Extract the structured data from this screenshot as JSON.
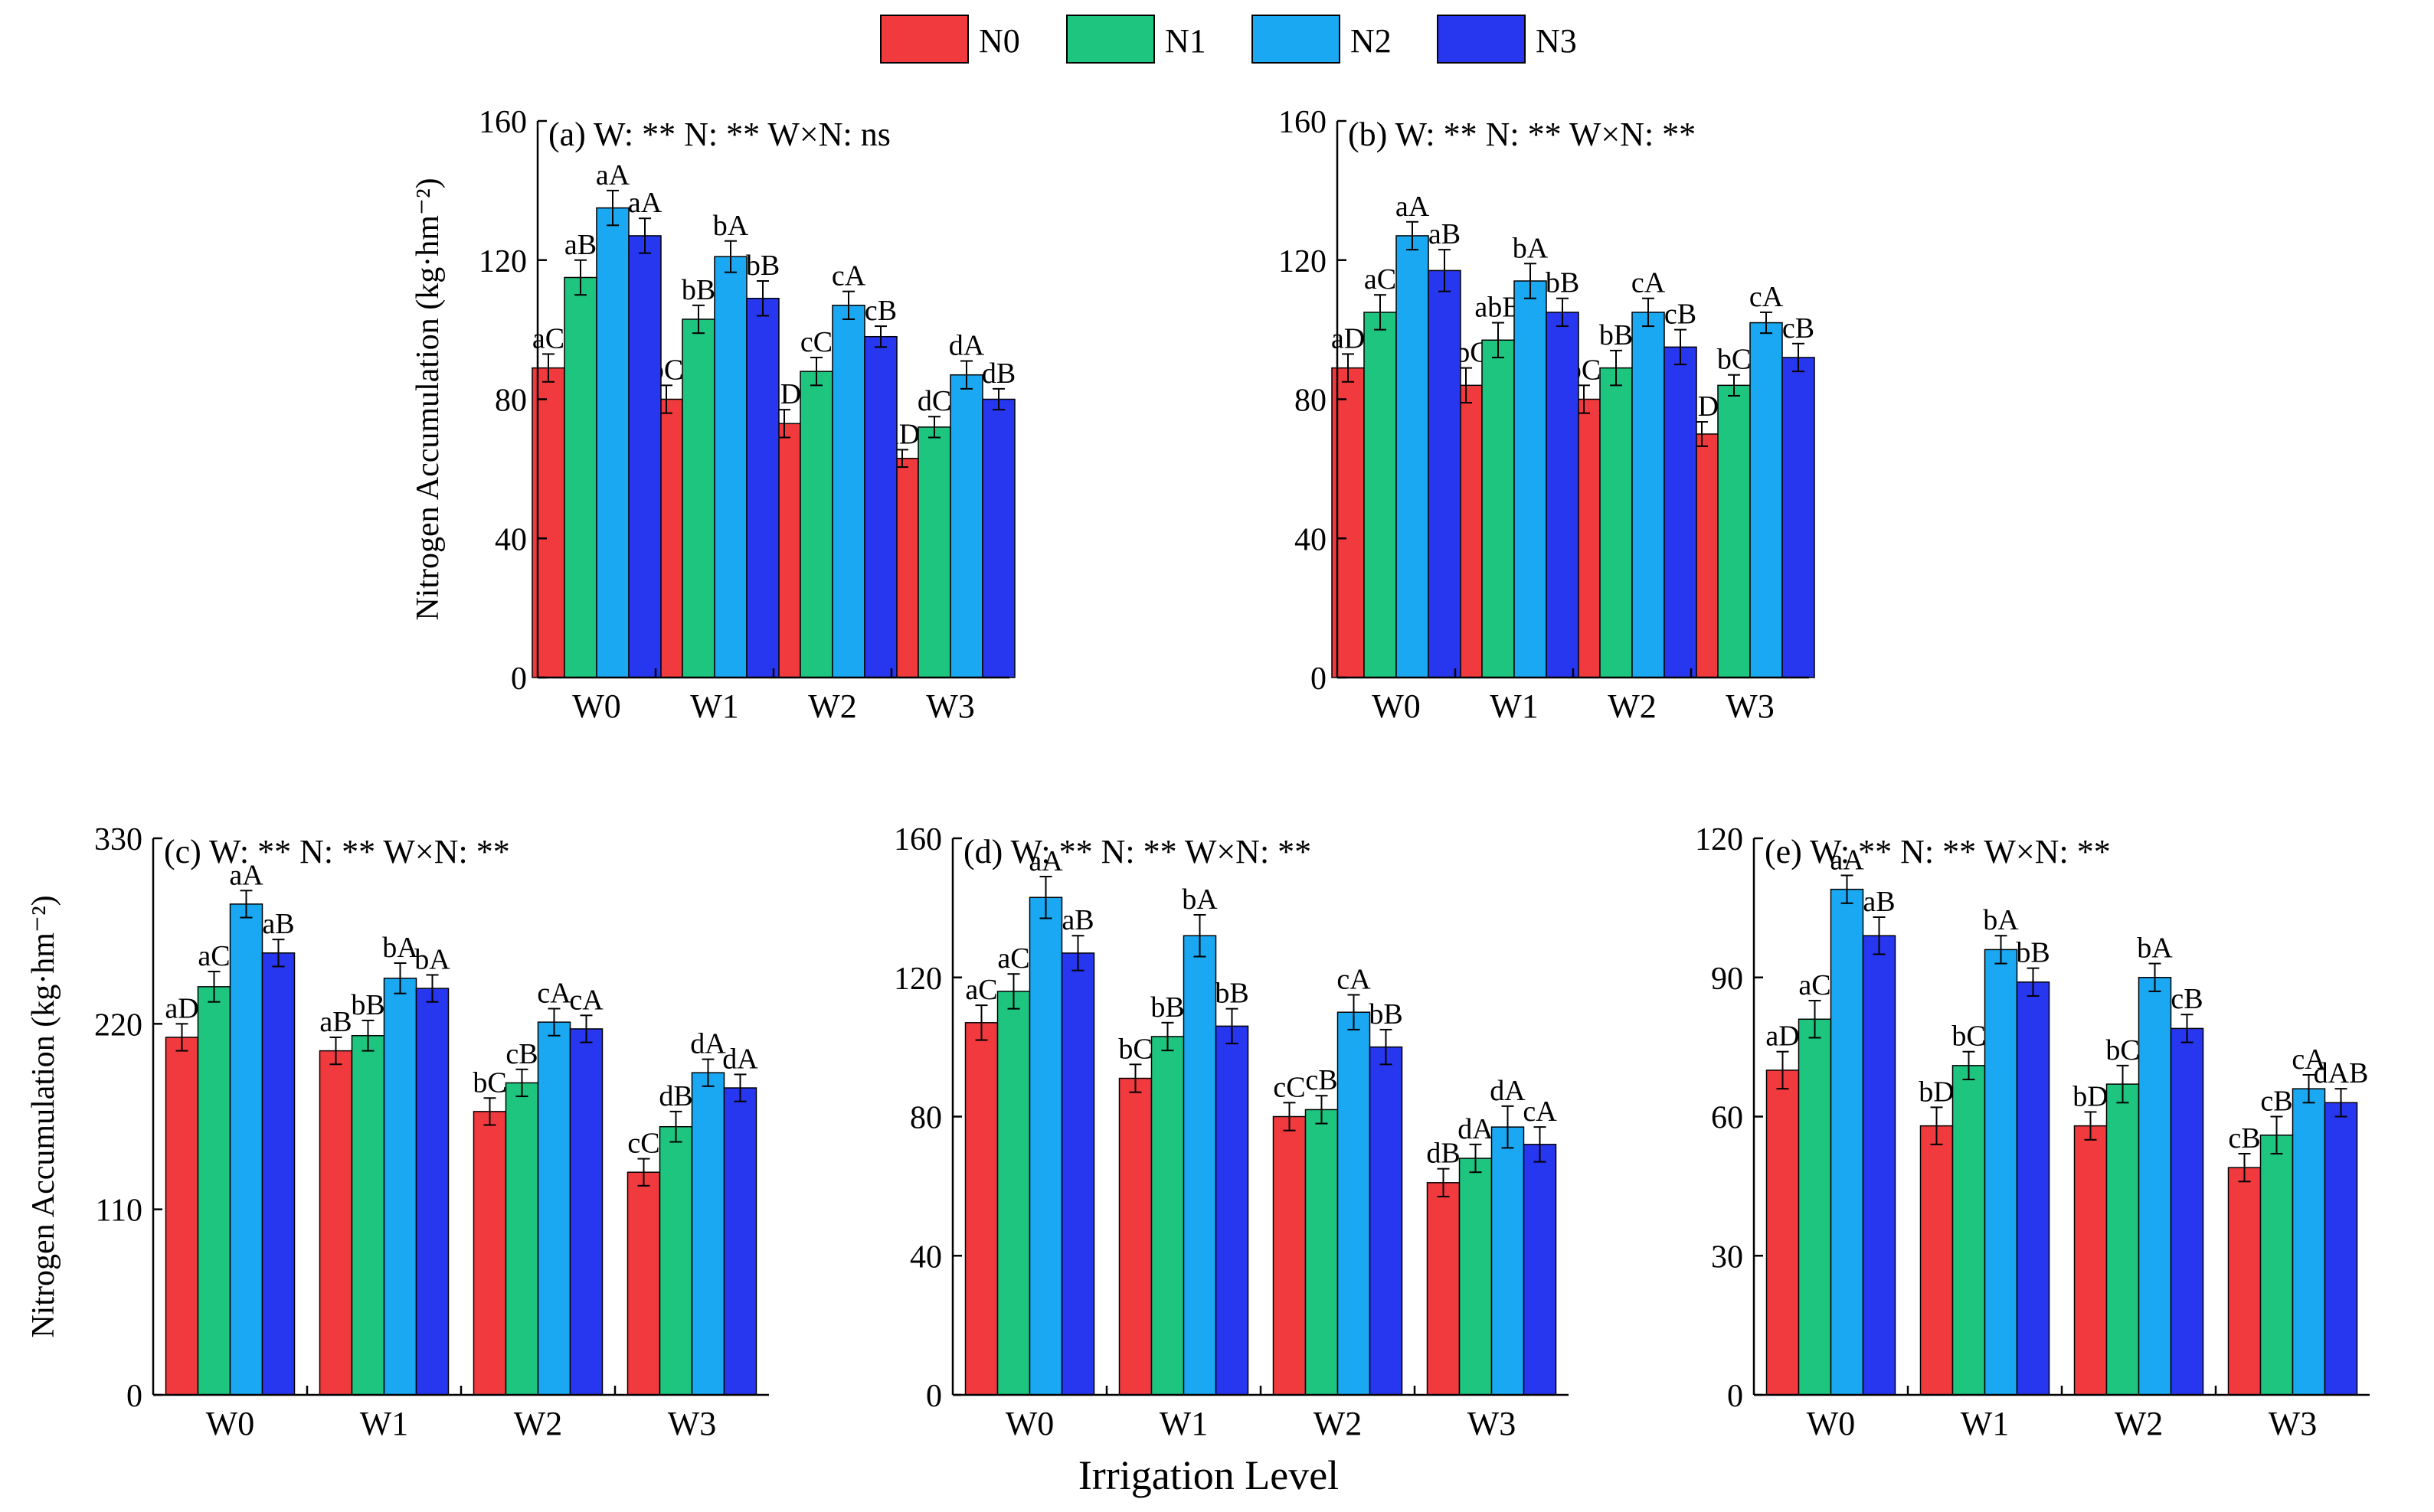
{
  "legend": {
    "items": [
      {
        "name": "N0",
        "color": "#f03a3e"
      },
      {
        "name": "N1",
        "color": "#1ec57e"
      },
      {
        "name": "N2",
        "color": "#1aa8f2"
      },
      {
        "name": "N3",
        "color": "#2736ef"
      }
    ]
  },
  "shared_axis_label": "Irrigation Level",
  "chart_data": [
    {
      "id": "a",
      "type": "bar",
      "title": "(a) W: **  N:  **  W×N:  ns",
      "ylabel": "Nitrogen Accumulation (kg·hm⁻²)",
      "ylim": [
        0,
        160
      ],
      "yticks": [
        0,
        40,
        80,
        120,
        160
      ],
      "categories": [
        "W0",
        "W1",
        "W2",
        "W3"
      ],
      "series": [
        {
          "name": "N0",
          "values": [
            89,
            80,
            73,
            63
          ],
          "errors": [
            4,
            4,
            4,
            2.5
          ],
          "labels": [
            "aC",
            "bC",
            "cD",
            "dD"
          ]
        },
        {
          "name": "N1",
          "values": [
            115,
            103,
            88,
            72
          ],
          "errors": [
            5,
            4,
            4,
            3
          ],
          "labels": [
            "aB",
            "bB",
            "cC",
            "dC"
          ]
        },
        {
          "name": "N2",
          "values": [
            135,
            121,
            107,
            87
          ],
          "errors": [
            5,
            4.5,
            4,
            4
          ],
          "labels": [
            "aA",
            "bA",
            "cA",
            "dA"
          ]
        },
        {
          "name": "N3",
          "values": [
            127,
            109,
            98,
            80
          ],
          "errors": [
            5,
            5,
            3,
            3
          ],
          "labels": [
            "aA",
            "bB",
            "cB",
            "dB"
          ]
        }
      ]
    },
    {
      "id": "b",
      "type": "bar",
      "title": "(b) W: **  N:  **  W×N:  **",
      "ylabel": "",
      "ylim": [
        0,
        160
      ],
      "yticks": [
        0,
        40,
        80,
        120,
        160
      ],
      "categories": [
        "W0",
        "W1",
        "W2",
        "W3"
      ],
      "series": [
        {
          "name": "N0",
          "values": [
            89,
            84,
            80,
            70
          ],
          "errors": [
            4,
            5,
            4,
            3.5
          ],
          "labels": [
            "aD",
            "abC",
            "bC",
            "cD"
          ]
        },
        {
          "name": "N1",
          "values": [
            105,
            97,
            89,
            84
          ],
          "errors": [
            5,
            5,
            5,
            3
          ],
          "labels": [
            "aC",
            "abB",
            "bB",
            "bC"
          ]
        },
        {
          "name": "N2",
          "values": [
            127,
            114,
            105,
            102
          ],
          "errors": [
            4,
            5,
            4,
            3
          ],
          "labels": [
            "aA",
            "bA",
            "cA",
            "cA"
          ]
        },
        {
          "name": "N3",
          "values": [
            117,
            105,
            95,
            92
          ],
          "errors": [
            6,
            4,
            5,
            4
          ],
          "labels": [
            "aB",
            "bB",
            "cB",
            "cB"
          ]
        }
      ]
    },
    {
      "id": "c",
      "type": "bar",
      "title": "(c) W: **  N:  **  W×N:  **",
      "ylabel": "Nitrogen Accumulation (kg·hm⁻²)",
      "ylim": [
        0,
        330
      ],
      "yticks": [
        0,
        110,
        220,
        330
      ],
      "categories": [
        "W0",
        "W1",
        "W2",
        "W3"
      ],
      "series": [
        {
          "name": "N0",
          "values": [
            212,
            204,
            168,
            132
          ],
          "errors": [
            8,
            8,
            8,
            8
          ],
          "labels": [
            "aD",
            "aB",
            "bC",
            "cC"
          ]
        },
        {
          "name": "N1",
          "values": [
            242,
            213,
            185,
            159
          ],
          "errors": [
            9,
            9,
            8,
            9
          ],
          "labels": [
            "aC",
            "bB",
            "cB",
            "dB"
          ]
        },
        {
          "name": "N2",
          "values": [
            291,
            247,
            221,
            191
          ],
          "errors": [
            8,
            9,
            8,
            8
          ],
          "labels": [
            "aA",
            "bA",
            "cA",
            "dA"
          ]
        },
        {
          "name": "N3",
          "values": [
            262,
            241,
            217,
            182
          ],
          "errors": [
            8,
            8,
            8,
            8
          ],
          "labels": [
            "aB",
            "bA",
            "cA",
            "dA"
          ]
        }
      ]
    },
    {
      "id": "d",
      "type": "bar",
      "title": "(d) W: **  N:  **  W×N:  **",
      "ylabel": "",
      "ylim": [
        0,
        160
      ],
      "yticks": [
        0,
        40,
        80,
        120,
        160
      ],
      "categories": [
        "W0",
        "W1",
        "W2",
        "W3"
      ],
      "series": [
        {
          "name": "N0",
          "values": [
            107,
            91,
            80,
            61
          ],
          "errors": [
            5,
            4,
            4,
            4
          ],
          "labels": [
            "aC",
            "bC",
            "cC",
            "dB"
          ]
        },
        {
          "name": "N1",
          "values": [
            116,
            103,
            82,
            68
          ],
          "errors": [
            5,
            4,
            4,
            4
          ],
          "labels": [
            "aC",
            "bB",
            "cB",
            "dA"
          ]
        },
        {
          "name": "N2",
          "values": [
            143,
            132,
            110,
            77
          ],
          "errors": [
            6,
            6,
            5,
            6
          ],
          "labels": [
            "aA",
            "bA",
            "cA",
            "dA"
          ]
        },
        {
          "name": "N3",
          "values": [
            127,
            106,
            100,
            72
          ],
          "errors": [
            5,
            5,
            5,
            5
          ],
          "labels": [
            "aB",
            "bB",
            "bB",
            "cA"
          ]
        }
      ]
    },
    {
      "id": "e",
      "type": "bar",
      "title": "(e) W: **  N:  **  W×N:  **",
      "ylabel": "",
      "ylim": [
        0,
        120
      ],
      "yticks": [
        0,
        30,
        60,
        90,
        120
      ],
      "categories": [
        "W0",
        "W1",
        "W2",
        "W3"
      ],
      "series": [
        {
          "name": "N0",
          "values": [
            70,
            58,
            58,
            49
          ],
          "errors": [
            4,
            4,
            3,
            3
          ],
          "labels": [
            "aD",
            "bD",
            "bD",
            "cB"
          ]
        },
        {
          "name": "N1",
          "values": [
            81,
            71,
            67,
            56
          ],
          "errors": [
            4,
            3,
            4,
            4
          ],
          "labels": [
            "aC",
            "bC",
            "bC",
            "cB"
          ]
        },
        {
          "name": "N2",
          "values": [
            109,
            96,
            90,
            66
          ],
          "errors": [
            3,
            3,
            3,
            3
          ],
          "labels": [
            "aA",
            "bA",
            "bA",
            "cA"
          ]
        },
        {
          "name": "N3",
          "values": [
            99,
            89,
            79,
            63
          ],
          "errors": [
            4,
            3,
            3,
            3
          ],
          "labels": [
            "aB",
            "bB",
            "cB",
            "dAB"
          ]
        }
      ]
    }
  ]
}
